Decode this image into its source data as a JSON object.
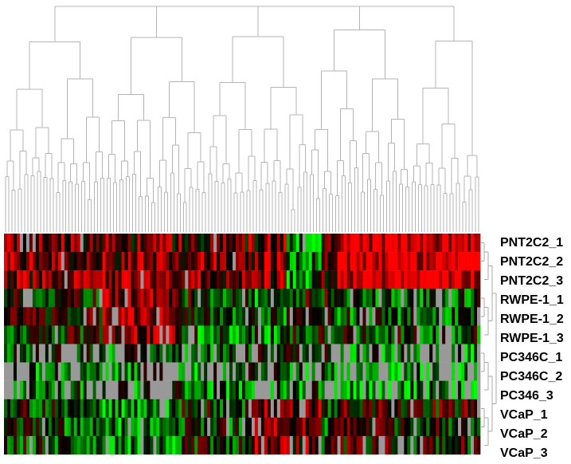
{
  "chart_data": {
    "type": "heatmap",
    "title": "",
    "xlabel": "",
    "ylabel": "",
    "legend": "none",
    "has_column_dendrogram": true,
    "has_row_dendrogram": true,
    "row_labels": [
      "PNT2C2_1",
      "PNT2C2_2",
      "PNT2C2_3",
      "RWPE-1_1",
      "RWPE-1_2",
      "RWPE-1_3",
      "PC346C_1",
      "PC346C_2",
      "PC346_3",
      "VCaP_1",
      "VCaP_2",
      "VCaP_3"
    ],
    "row_groups": [
      {
        "name": "PNT2C2",
        "rows": [
          0,
          1,
          2
        ]
      },
      {
        "name": "RWPE-1",
        "rows": [
          3,
          4,
          5
        ]
      },
      {
        "name": "PC346",
        "rows": [
          6,
          7,
          8
        ]
      },
      {
        "name": "VCaP",
        "rows": [
          9,
          10,
          11
        ]
      }
    ],
    "column_count": 150,
    "color_scale": {
      "low": "#00ff00",
      "mid": "#000000",
      "high": "#ff0000",
      "missing": "#999999"
    },
    "values": "estimated expression pattern: PNT2C2 rows mostly high (red), RWPE-1 rows mixed with red and green blocks, PC346C rows mostly low (green) with many missing (grey) cells, VCaP rows mixed green/red/black"
  },
  "colors": {
    "tree_line": "#b5b5b5",
    "row_tree_line": "#a8a8a8",
    "label": "#000000"
  }
}
